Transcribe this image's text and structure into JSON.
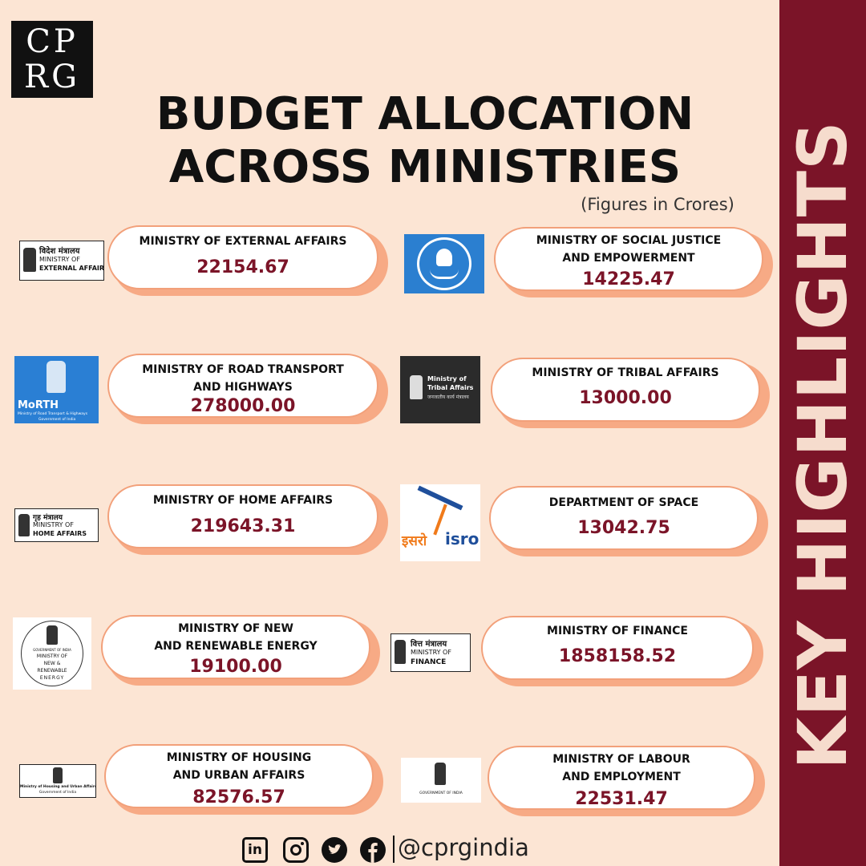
{
  "brand": {
    "logo_line1": "CP",
    "logo_line2": "RG"
  },
  "title_line1": "BUDGET ALLOCATION",
  "title_line2": "ACROSS MINISTRIES",
  "subtitle": "(Figures in Crores)",
  "sidebar_label": "KEY HIGHLIGHTS",
  "accent_color": "#7b1428",
  "card_border_color": "#f2a07a",
  "ministries": [
    {
      "name": "MINISTRY OF EXTERNAL AFFAIRS",
      "value": "22154.67",
      "logo_hindi": "विदेश मंत्रालय",
      "logo_line1": "MINISTRY OF",
      "logo_line2": "EXTERNAL AFFAIRS"
    },
    {
      "name": "MINISTRY OF SOCIAL JUSTICE\nAND EMPOWERMENT",
      "value": "14225.47"
    },
    {
      "name": "MINISTRY OF ROAD TRANSPORT\nAND HIGHWAYS",
      "value": "278000.00",
      "logo_text": "MoRTH",
      "logo_sub": "Ministry of Road Transport & Highways",
      "logo_sub2": "Government of India"
    },
    {
      "name": "MINISTRY OF TRIBAL AFFAIRS",
      "value": "13000.00",
      "logo_line1": "Ministry of",
      "logo_line2": "Tribal Affairs",
      "logo_hindi": "जनजातीय कार्य मंत्रालय"
    },
    {
      "name": "MINISTRY OF HOME AFFAIRS",
      "value": "219643.31",
      "logo_hindi": "गृह मंत्रालय",
      "logo_line1": "MINISTRY OF",
      "logo_line2": "HOME AFFAIRS"
    },
    {
      "name": "DEPARTMENT OF SPACE",
      "value": "13042.75",
      "logo_hindi": "इसरो",
      "logo_line1": "isro"
    },
    {
      "name": "MINISTRY OF NEW\nAND RENEWABLE ENERGY",
      "value": "19100.00",
      "logo_line0": "GOVERNMENT OF INDIA",
      "logo_line1": "MINISTRY OF",
      "logo_line2": "NEW &",
      "logo_line3": "RENEWABLE",
      "logo_line4": "ENERGY"
    },
    {
      "name": "MINISTRY OF FINANCE",
      "value": "1858158.52",
      "logo_hindi": "वित्त मंत्रालय",
      "logo_line1": "MINISTRY OF",
      "logo_line2": "FINANCE"
    },
    {
      "name": "MINISTRY OF HOUSING\nAND URBAN AFFAIRS",
      "value": "82576.57",
      "logo_line1": "Ministry of Housing and Urban Affairs",
      "logo_line2": "Government of India"
    },
    {
      "name": "MINISTRY OF LABOUR\nAND EMPLOYMENT",
      "value": "22531.47",
      "logo_line1": "GOVERNMENT OF INDIA"
    }
  ],
  "footer": {
    "handle": "@cprgindia",
    "icons": [
      "linkedin-icon",
      "instagram-icon",
      "twitter-icon",
      "facebook-icon"
    ],
    "linkedin_text": "in"
  }
}
